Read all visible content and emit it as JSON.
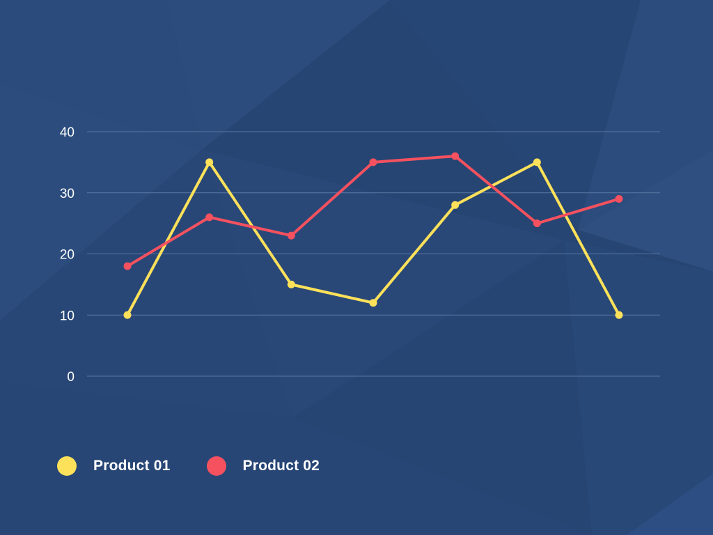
{
  "colors": {
    "background": "#264573",
    "grid": "#5a78a3",
    "text": "#ffffff"
  },
  "chart_data": {
    "type": "line",
    "title": "",
    "xlabel": "",
    "ylabel": "",
    "categories": [
      "",
      "",
      "",
      "",
      "",
      "",
      ""
    ],
    "ylim": [
      0,
      40
    ],
    "yticks": [
      0,
      10,
      20,
      30,
      40
    ],
    "grid": true,
    "legend_placement": "bottom-left",
    "series": [
      {
        "name": "Product 01",
        "color": "#fde15a",
        "values": [
          10,
          35,
          15,
          12,
          28,
          35,
          10
        ]
      },
      {
        "name": "Product 02",
        "color": "#f5515f",
        "values": [
          18,
          26,
          23,
          35,
          36,
          25,
          29
        ]
      }
    ]
  }
}
